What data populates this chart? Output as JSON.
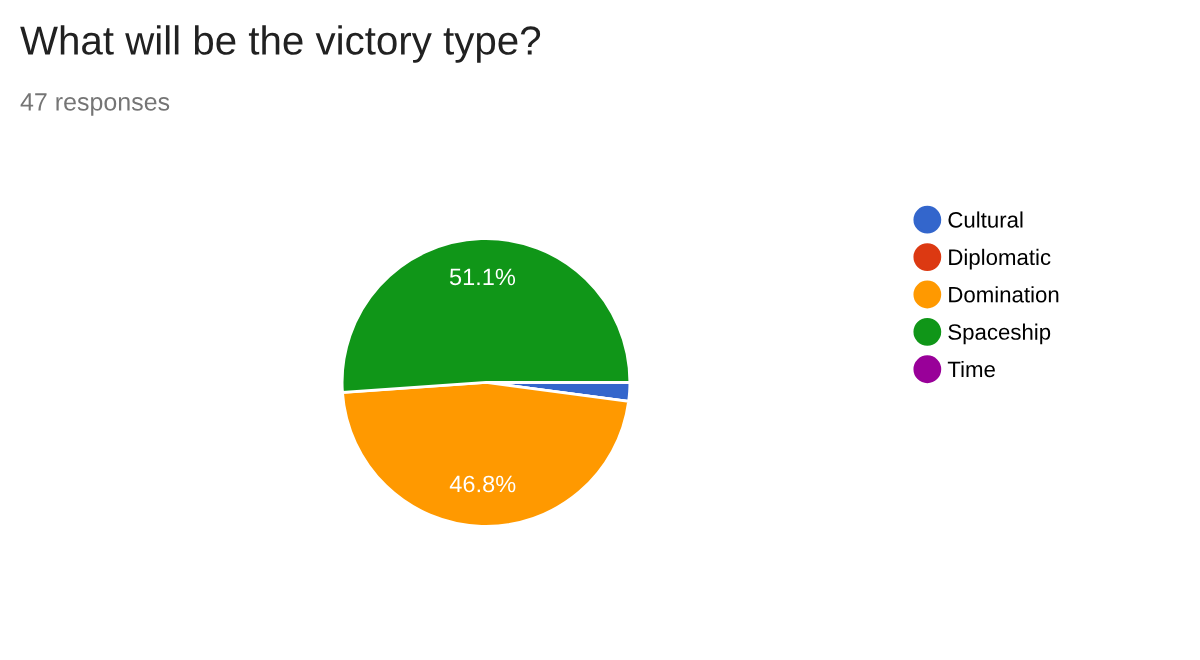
{
  "chart_data": {
    "type": "pie",
    "title": "What will be the victory type?",
    "subtitle": "47 responses",
    "categories": [
      "Cultural",
      "Diplomatic",
      "Domination",
      "Spaceship",
      "Time"
    ],
    "values": [
      2.1,
      0,
      46.8,
      51.1,
      0
    ],
    "colors": [
      "#3366cc",
      "#dc3912",
      "#ff9900",
      "#109618",
      "#990099"
    ],
    "value_labels": [
      null,
      null,
      "46.8%",
      "51.1%",
      null
    ],
    "legend": "right"
  }
}
